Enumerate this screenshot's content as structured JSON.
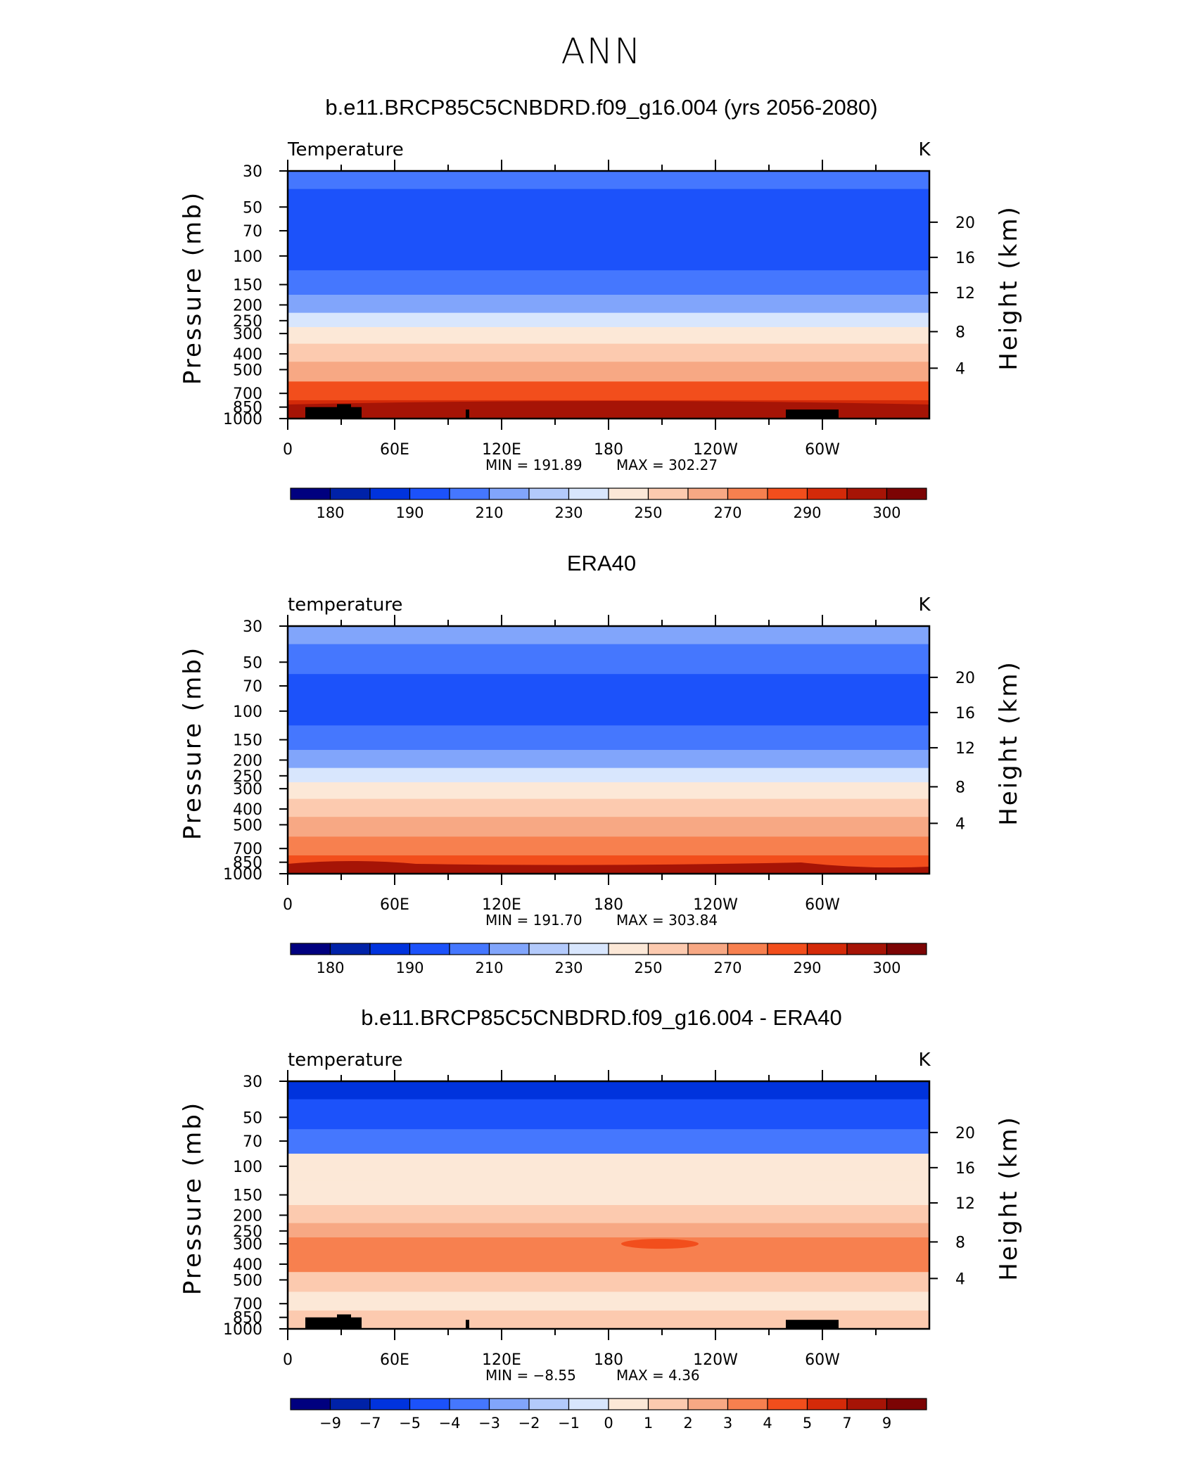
{
  "page": {
    "title": "ANN",
    "tick_lon": [
      "0",
      "60E",
      "120E",
      "180",
      "120W",
      "60W"
    ],
    "tick_p": [
      "30",
      "50",
      "70",
      "100",
      "150",
      "200",
      "250",
      "300",
      "400",
      "500",
      "700",
      "850",
      "1000"
    ],
    "tick_h": [
      "20",
      "16",
      "12",
      "8",
      "4"
    ],
    "ylabel_left": "Pressure (mb)",
    "ylabel_right": "Height (km)",
    "units": "K"
  },
  "chart_data": [
    {
      "type": "heatmap",
      "title": "b.e11.BRCP85C5CNBDRD.f09_g16.004 (yrs 2056-2080)",
      "field_label": "Temperature",
      "units": "K",
      "min_label": "MIN = 191.89",
      "max_label": "MAX = 302.27",
      "min": 191.89,
      "max": 302.27,
      "colorbar_labels": [
        "180",
        "190",
        "210",
        "230",
        "250",
        "270",
        "290",
        "300"
      ],
      "colorbar_colors": [
        "#00007f",
        "#0022a8",
        "#0033dd",
        "#1c52fa",
        "#4577fe",
        "#81a5fb",
        "#b3cafb",
        "#d8e6fd",
        "#fce8d7",
        "#fccaaf",
        "#f7a884",
        "#f7804f",
        "#f24e1c",
        "#d42a09",
        "#a61406",
        "#7c0404"
      ],
      "zonal_profile_by_pressure": {
        "pressure": [
          30,
          50,
          70,
          100,
          150,
          200,
          250,
          300,
          400,
          500,
          700,
          850,
          1000
        ],
        "band_colors": [
          "#4577fe",
          "#1c52fa",
          "#1c52fa",
          "#1c52fa",
          "#4577fe",
          "#81a5fb",
          "#d8e6fd",
          "#fce8d7",
          "#fccaaf",
          "#f7a884",
          "#f24e1c",
          "#d42a09",
          "#a61406"
        ]
      }
    },
    {
      "type": "heatmap",
      "title": "ERA40",
      "field_label": "temperature",
      "units": "K",
      "min_label": "MIN = 191.70",
      "max_label": "MAX = 303.84",
      "min": 191.7,
      "max": 303.84,
      "colorbar_labels": [
        "180",
        "190",
        "210",
        "230",
        "250",
        "270",
        "290",
        "300"
      ],
      "colorbar_colors": [
        "#00007f",
        "#0022a8",
        "#0033dd",
        "#1c52fa",
        "#4577fe",
        "#81a5fb",
        "#b3cafb",
        "#d8e6fd",
        "#fce8d7",
        "#fccaaf",
        "#f7a884",
        "#f7804f",
        "#f24e1c",
        "#d42a09",
        "#a61406",
        "#7c0404"
      ],
      "zonal_profile_by_pressure": {
        "pressure": [
          30,
          50,
          70,
          100,
          150,
          200,
          250,
          300,
          400,
          500,
          700,
          850,
          1000
        ],
        "band_colors": [
          "#81a5fb",
          "#4577fe",
          "#1c52fa",
          "#1c52fa",
          "#4577fe",
          "#81a5fb",
          "#d8e6fd",
          "#fce8d7",
          "#fccaaf",
          "#f7a884",
          "#f7804f",
          "#f24e1c",
          "#d42a09"
        ]
      }
    },
    {
      "type": "heatmap",
      "title": "b.e11.BRCP85C5CNBDRD.f09_g16.004 - ERA40",
      "field_label": "temperature",
      "units": "K",
      "min_label": "MIN = −8.55",
      "max_label": "MAX = 4.36",
      "min": -8.55,
      "max": 4.36,
      "colorbar_labels": [
        "−9",
        "−7",
        "−5",
        "−4",
        "−3",
        "−2",
        "−1",
        "0",
        "1",
        "2",
        "3",
        "4",
        "5",
        "7",
        "9"
      ],
      "colorbar_colors": [
        "#00007f",
        "#0022a8",
        "#0033dd",
        "#1c52fa",
        "#4577fe",
        "#81a5fb",
        "#b3cafb",
        "#d8e6fd",
        "#fce8d7",
        "#fccaaf",
        "#f7a884",
        "#f7804f",
        "#f24e1c",
        "#d42a09",
        "#a61406",
        "#7c0404"
      ],
      "zonal_profile_by_pressure": {
        "pressure": [
          30,
          50,
          70,
          100,
          150,
          200,
          250,
          300,
          400,
          500,
          700,
          850,
          1000
        ],
        "band_colors": [
          "#0033dd",
          "#1c52fa",
          "#4577fe",
          "#fce8d7",
          "#fce8d7",
          "#fccaaf",
          "#f7a884",
          "#f7804f",
          "#f7804f",
          "#fccaaf",
          "#fce8d7",
          "#fccaaf",
          "#fccaaf"
        ]
      }
    }
  ]
}
